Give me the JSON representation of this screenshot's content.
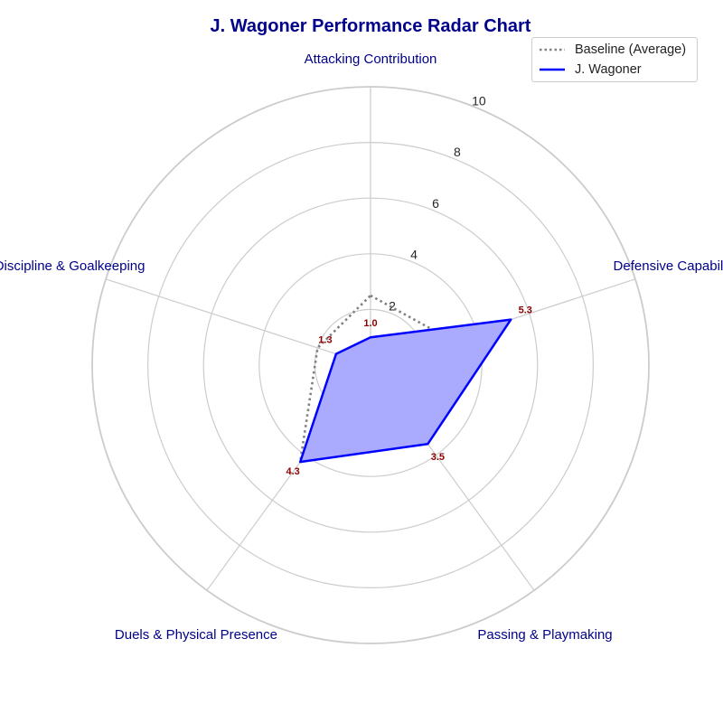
{
  "chart_data": {
    "type": "radar",
    "title": "J. Wagoner Performance Radar Chart",
    "categories": [
      "Attacking Contribution",
      "Defensive Capability",
      "Passing & Playmaking",
      "Duels & Physical Presence",
      "Discipline & Goalkeeping"
    ],
    "rlim": [
      0,
      10
    ],
    "rticks": [
      2,
      4,
      6,
      8,
      10
    ],
    "grid": true,
    "legend_position": "top-right",
    "series": [
      {
        "name": "Baseline (Average)",
        "values": [
          2.5,
          3.0,
          3.2,
          4.3,
          2.0
        ],
        "color": "#808080",
        "style": "dotted",
        "fill": false
      },
      {
        "name": "J. Wagoner",
        "values": [
          1.0,
          5.3,
          3.5,
          4.3,
          1.3
        ],
        "color": "#0000ff",
        "style": "solid",
        "fill": true,
        "fill_color": "#aaaaff"
      }
    ],
    "value_labels": [
      "1.0",
      "5.3",
      "3.5",
      "4.3",
      "1.3"
    ]
  }
}
